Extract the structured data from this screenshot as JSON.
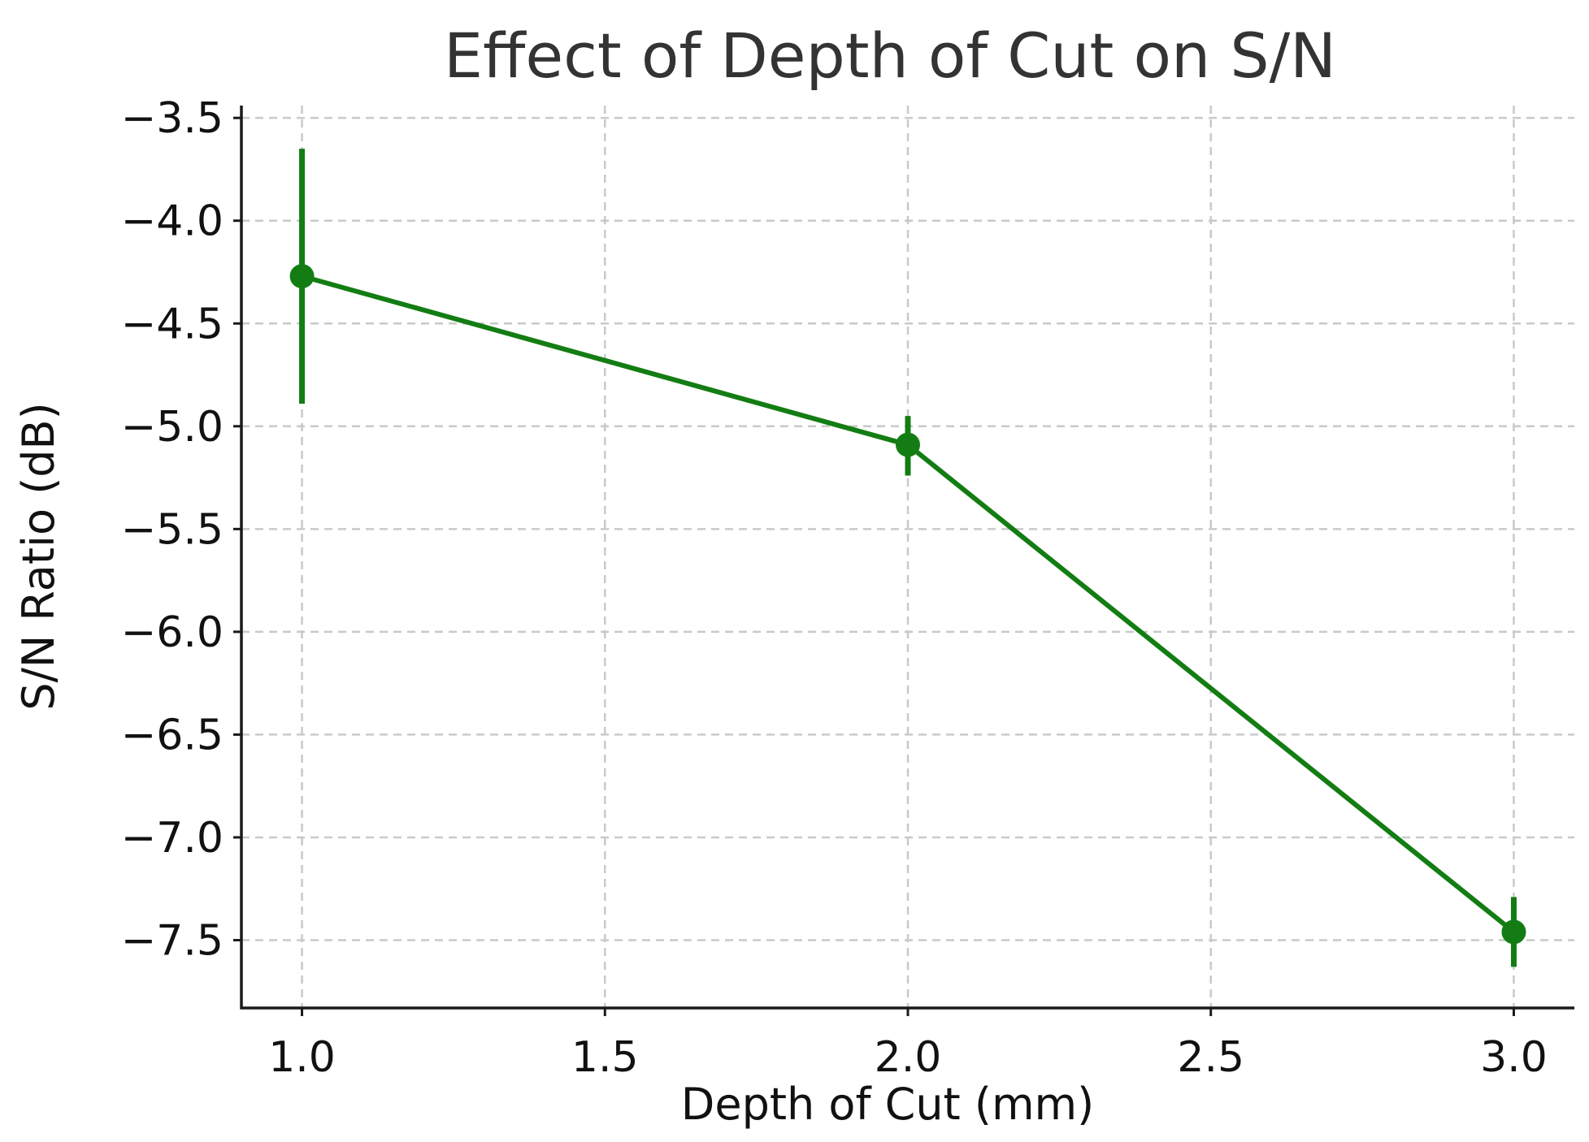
{
  "chart_data": {
    "type": "line",
    "title": "Effect of Depth of Cut on S/N",
    "xlabel": "Depth of Cut (mm)",
    "ylabel": "S/N Ratio (dB)",
    "x": [
      1.0,
      2.0,
      3.0
    ],
    "series": [
      {
        "values": [
          -4.27,
          -5.09,
          -7.46
        ],
        "error_low": [
          -4.89,
          -5.24,
          -7.63
        ],
        "error_high": [
          -3.65,
          -4.95,
          -7.29
        ],
        "color": "#137d13"
      }
    ],
    "xlim": [
      0.9,
      3.1
    ],
    "ylim": [
      -7.83,
      -3.44
    ],
    "xticks": [
      1.0,
      1.5,
      2.0,
      2.5,
      3.0
    ],
    "xtick_labels": [
      "1.0",
      "1.5",
      "2.0",
      "2.5",
      "3.0"
    ],
    "yticks": [
      -3.5,
      -4.0,
      -4.5,
      -5.0,
      -5.5,
      -6.0,
      -6.5,
      -7.0,
      -7.5
    ],
    "ytick_labels": [
      "−3.5",
      "−4.0",
      "−4.5",
      "−5.0",
      "−5.5",
      "−6.0",
      "−6.5",
      "−7.0",
      "−7.5"
    ],
    "grid": true,
    "markers": "filled-circle",
    "error_bars": true
  }
}
